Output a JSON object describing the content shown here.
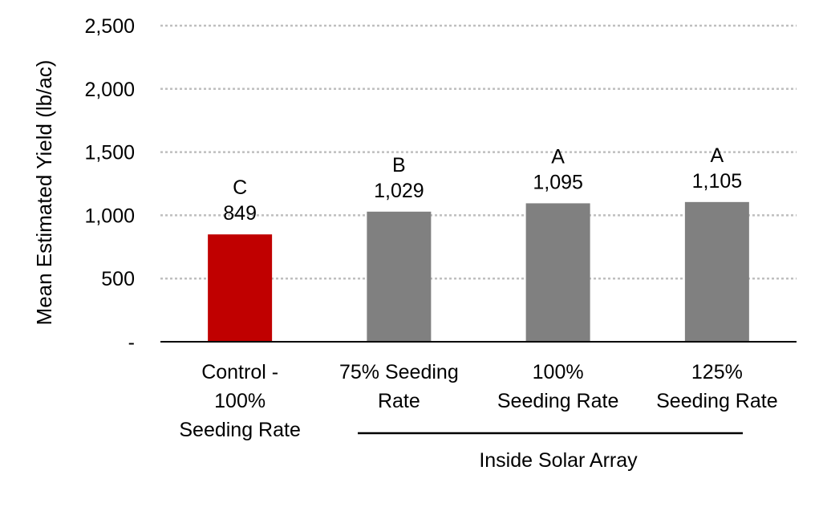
{
  "chart_data": {
    "type": "bar",
    "title": "",
    "ylabel": "Mean Estimated Yield  (lb/ac)",
    "xlabel": "",
    "ylim": [
      0,
      2500
    ],
    "yticks": [
      {
        "value": 0,
        "label": "-"
      },
      {
        "value": 500,
        "label": "500"
      },
      {
        "value": 1000,
        "label": "1,000"
      },
      {
        "value": 1500,
        "label": "1,500"
      },
      {
        "value": 2000,
        "label": "2,000"
      },
      {
        "value": 2500,
        "label": "2,500"
      }
    ],
    "grid": true,
    "categories": [
      {
        "lines": [
          "Control -",
          "100%",
          "Seeding Rate"
        ],
        "value": 849,
        "value_label": "849",
        "letter": "C",
        "color": "#c00000"
      },
      {
        "lines": [
          "75% Seeding",
          "Rate"
        ],
        "value": 1029,
        "value_label": "1,029",
        "letter": "B",
        "color": "#808080"
      },
      {
        "lines": [
          "100%",
          "Seeding Rate"
        ],
        "value": 1095,
        "value_label": "1,095",
        "letter": "A",
        "color": "#808080"
      },
      {
        "lines": [
          "125%",
          "Seeding Rate"
        ],
        "value": 1105,
        "value_label": "1,105",
        "letter": "A",
        "color": "#808080"
      }
    ],
    "group_label": "Inside Solar Array",
    "grid_color": "#bfbfbf",
    "axis_color": "#000000"
  }
}
